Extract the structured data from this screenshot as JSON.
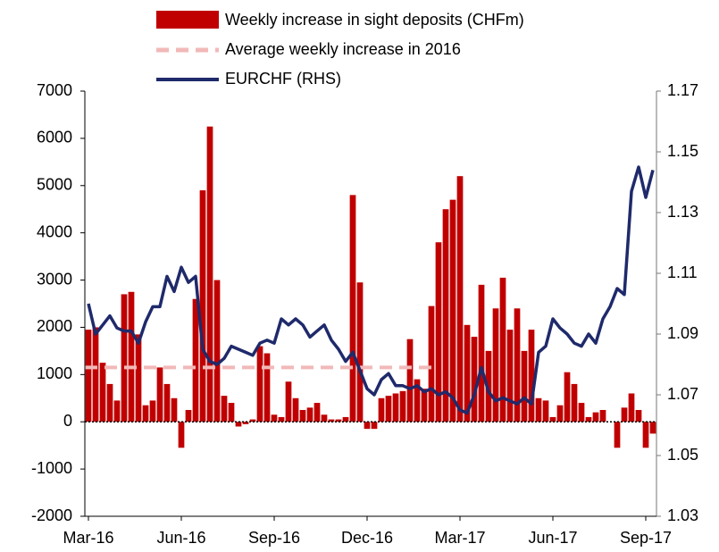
{
  "chart_data": {
    "type": "bar_line",
    "categories": [
      "Mar-16",
      null,
      null,
      null,
      null,
      null,
      null,
      null,
      null,
      null,
      null,
      null,
      null,
      "Jun-16",
      null,
      null,
      null,
      null,
      null,
      null,
      null,
      null,
      null,
      null,
      null,
      null,
      "Sep-16",
      null,
      null,
      null,
      null,
      null,
      null,
      null,
      null,
      null,
      null,
      null,
      null,
      "Dec-16",
      null,
      null,
      null,
      null,
      null,
      null,
      null,
      null,
      null,
      null,
      null,
      null,
      "Mar-17",
      null,
      null,
      null,
      null,
      null,
      null,
      null,
      null,
      null,
      null,
      null,
      null,
      "Jun-17",
      null,
      null,
      null,
      null,
      null,
      null,
      null,
      null,
      null,
      null,
      null,
      null,
      "Sep-17",
      null
    ],
    "series": [
      {
        "name": "Weekly increase in sight deposits (CHFm)",
        "color": "#c00000",
        "values": [
          1950,
          2000,
          1250,
          800,
          450,
          2700,
          2750,
          1850,
          350,
          450,
          1150,
          800,
          500,
          -550,
          250,
          2600,
          4900,
          6250,
          3000,
          550,
          400,
          -100,
          -50,
          50,
          1600,
          1450,
          150,
          100,
          850,
          500,
          250,
          300,
          400,
          150,
          50,
          50,
          100,
          4800,
          2950,
          -150,
          -150,
          500,
          550,
          600,
          650,
          1750,
          900,
          700,
          2450,
          3800,
          4500,
          4700,
          5200,
          2050,
          1800,
          2900,
          1500,
          2400,
          3050,
          1950,
          2400,
          1500,
          1950,
          500,
          450,
          100,
          350,
          1050,
          800,
          400,
          100,
          200,
          250,
          0,
          -550,
          300,
          600,
          250,
          -550,
          -250
        ]
      },
      {
        "name": "EURCHF (RHS)",
        "color": "#1f2a6b",
        "axis": "y2",
        "values": [
          1.1,
          1.09,
          1.093,
          1.096,
          1.092,
          1.091,
          1.091,
          1.087,
          1.094,
          1.099,
          1.099,
          1.109,
          1.104,
          1.112,
          1.107,
          1.109,
          1.085,
          1.081,
          1.08,
          1.082,
          1.086,
          1.085,
          1.084,
          1.083,
          1.087,
          1.088,
          1.087,
          1.095,
          1.093,
          1.095,
          1.093,
          1.089,
          1.091,
          1.093,
          1.088,
          1.085,
          1.081,
          1.084,
          1.078,
          1.072,
          1.07,
          1.075,
          1.077,
          1.073,
          1.073,
          1.072,
          1.073,
          1.071,
          1.072,
          1.07,
          1.071,
          1.069,
          1.065,
          1.064,
          1.07,
          1.079,
          1.071,
          1.068,
          1.069,
          1.068,
          1.067,
          1.069,
          1.067,
          1.084,
          1.086,
          1.095,
          1.092,
          1.09,
          1.087,
          1.086,
          1.09,
          1.087,
          1.095,
          1.099,
          1.105,
          1.103,
          1.137,
          1.145,
          1.135,
          1.144
        ]
      }
    ],
    "average_line": {
      "name": "Average weekly increase in 2016",
      "value": 1150,
      "color": "#f2b9b9"
    },
    "ylim": [
      -2000,
      7000
    ],
    "yticks": [
      -2000,
      -1000,
      0,
      1000,
      2000,
      3000,
      4000,
      5000,
      6000,
      7000
    ],
    "y2lim": [
      1.03,
      1.17
    ],
    "y2ticks": [
      1.03,
      1.05,
      1.07,
      1.09,
      1.11,
      1.13,
      1.15,
      1.17
    ]
  }
}
